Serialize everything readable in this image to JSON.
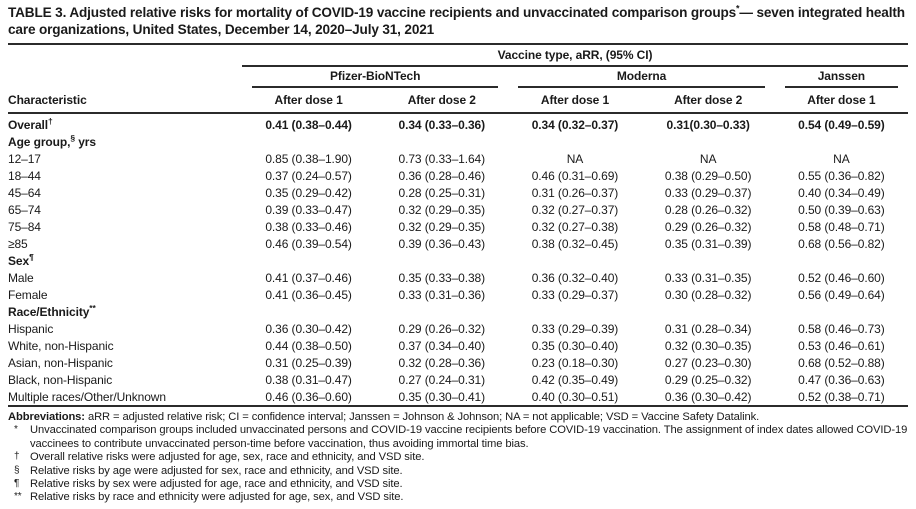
{
  "page": {
    "background": "#ffffff",
    "text_color": "#1a1a1a",
    "rule_color": "#2b2b2b"
  },
  "title": {
    "pre": "TABLE 3. Adjusted relative risks for mortality of COVID-19 vaccine recipients and unvaccinated comparison groups",
    "sup": "*",
    "post": "— seven integrated health care organizations, United States, December 14, 2020–July 31, 2021"
  },
  "table": {
    "span_header": "Vaccine type, aRR, (95% CI)",
    "characteristic_label": "Characteristic",
    "groups": [
      {
        "name": "Pfizer-BioNTech",
        "span": 2
      },
      {
        "name": "Moderna",
        "span": 2
      },
      {
        "name": "Janssen",
        "span": 1
      }
    ],
    "col_headers": [
      "After dose 1",
      "After dose 2",
      "After dose 1",
      "After dose 2",
      "After dose 1"
    ],
    "rows": [
      {
        "kind": "data",
        "label": "Overall",
        "sup": "†",
        "bold": true,
        "values": [
          "0.41 (0.38–0.44)",
          "0.34 (0.33–0.36)",
          "0.34 (0.32–0.37)",
          "0.31(0.30–0.33)",
          "0.54 (0.49–0.59)"
        ]
      },
      {
        "kind": "section",
        "label": "Age group,",
        "sup": "§",
        "suffix": " yrs"
      },
      {
        "kind": "data",
        "label": "12–17",
        "values": [
          "0.85 (0.38–1.90)",
          "0.73 (0.33–1.64)",
          "NA",
          "NA",
          "NA"
        ]
      },
      {
        "kind": "data",
        "label": "18–44",
        "values": [
          "0.37 (0.24–0.57)",
          "0.36 (0.28–0.46)",
          "0.46 (0.31–0.69)",
          "0.38 (0.29–0.50)",
          "0.55 (0.36–0.82)"
        ]
      },
      {
        "kind": "data",
        "label": "45–64",
        "values": [
          "0.35 (0.29–0.42)",
          "0.28 (0.25–0.31)",
          "0.31 (0.26–0.37)",
          "0.33 (0.29–0.37)",
          "0.40 (0.34–0.49)"
        ]
      },
      {
        "kind": "data",
        "label": "65–74",
        "values": [
          "0.39 (0.33–0.47)",
          "0.32 (0.29–0.35)",
          "0.32 (0.27–0.37)",
          "0.28 (0.26–0.32)",
          "0.50 (0.39–0.63)"
        ]
      },
      {
        "kind": "data",
        "label": "75–84",
        "values": [
          "0.38 (0.33–0.46)",
          "0.32 (0.29–0.35)",
          "0.32 (0.27–0.38)",
          "0.29 (0.26–0.32)",
          "0.58 (0.48–0.71)"
        ]
      },
      {
        "kind": "data",
        "label": "≥85",
        "values": [
          "0.46 (0.39–0.54)",
          "0.39 (0.36–0.43)",
          "0.38 (0.32–0.45)",
          "0.35 (0.31–0.39)",
          "0.68 (0.56–0.82)"
        ]
      },
      {
        "kind": "section",
        "label": "Sex",
        "sup": "¶"
      },
      {
        "kind": "data",
        "label": "Male",
        "values": [
          "0.41 (0.37–0.46)",
          "0.35 (0.33–0.38)",
          "0.36 (0.32–0.40)",
          "0.33 (0.31–0.35)",
          "0.52 (0.46–0.60)"
        ]
      },
      {
        "kind": "data",
        "label": "Female",
        "values": [
          "0.41 (0.36–0.45)",
          "0.33 (0.31–0.36)",
          "0.33 (0.29–0.37)",
          "0.30 (0.28–0.32)",
          "0.56 (0.49–0.64)"
        ]
      },
      {
        "kind": "section",
        "label": "Race/Ethnicity",
        "sup": "**"
      },
      {
        "kind": "data",
        "label": "Hispanic",
        "values": [
          "0.36 (0.30–0.42)",
          "0.29 (0.26–0.32)",
          "0.33 (0.29–0.39)",
          "0.31 (0.28–0.34)",
          "0.58 (0.46–0.73)"
        ]
      },
      {
        "kind": "data",
        "label": "White, non-Hispanic",
        "values": [
          "0.44 (0.38–0.50)",
          "0.37 (0.34–0.40)",
          "0.35 (0.30–0.40)",
          "0.32 (0.30–0.35)",
          "0.53 (0.46–0.61)"
        ]
      },
      {
        "kind": "data",
        "label": "Asian, non-Hispanic",
        "values": [
          "0.31 (0.25–0.39)",
          "0.32 (0.28–0.36)",
          "0.23 (0.18–0.30)",
          "0.27 (0.23–0.30)",
          "0.68 (0.52–0.88)"
        ]
      },
      {
        "kind": "data",
        "label": "Black, non-Hispanic",
        "values": [
          "0.38 (0.31–0.47)",
          "0.27 (0.24–0.31)",
          "0.42 (0.35–0.49)",
          "0.29 (0.25–0.32)",
          "0.47 (0.36–0.63)"
        ]
      },
      {
        "kind": "data",
        "label": "Multiple races/Other/Unknown",
        "values": [
          "0.46 (0.36–0.60)",
          "0.35 (0.30–0.41)",
          "0.40 (0.30–0.51)",
          "0.36 (0.30–0.42)",
          "0.52 (0.38–0.71)"
        ]
      }
    ]
  },
  "footnotes": {
    "abbr_label": "Abbreviations:",
    "abbr_text": " aRR = adjusted relative risk; CI = confidence interval; Janssen = Johnson & Johnson; NA = not applicable; VSD = Vaccine Safety Datalink.",
    "notes": [
      {
        "marker": "*",
        "text": "Unvaccinated comparison groups included unvaccinated persons and COVID-19 vaccine recipients before COVID-19 vaccination. The assignment of index dates allowed COVID-19 vaccinees to contribute unvaccinated person-time before vaccination, thus avoiding immortal time bias."
      },
      {
        "marker": "†",
        "text": "Overall relative risks were adjusted for age, sex, race and ethnicity, and VSD site."
      },
      {
        "marker": "§",
        "text": "Relative risks by age were adjusted for sex, race and ethnicity, and VSD site."
      },
      {
        "marker": "¶",
        "text": "Relative risks by sex were adjusted for age, race and ethnicity, and VSD site."
      },
      {
        "marker": "**",
        "text": "Relative risks by race and ethnicity were adjusted for age, sex, and VSD site."
      }
    ]
  }
}
